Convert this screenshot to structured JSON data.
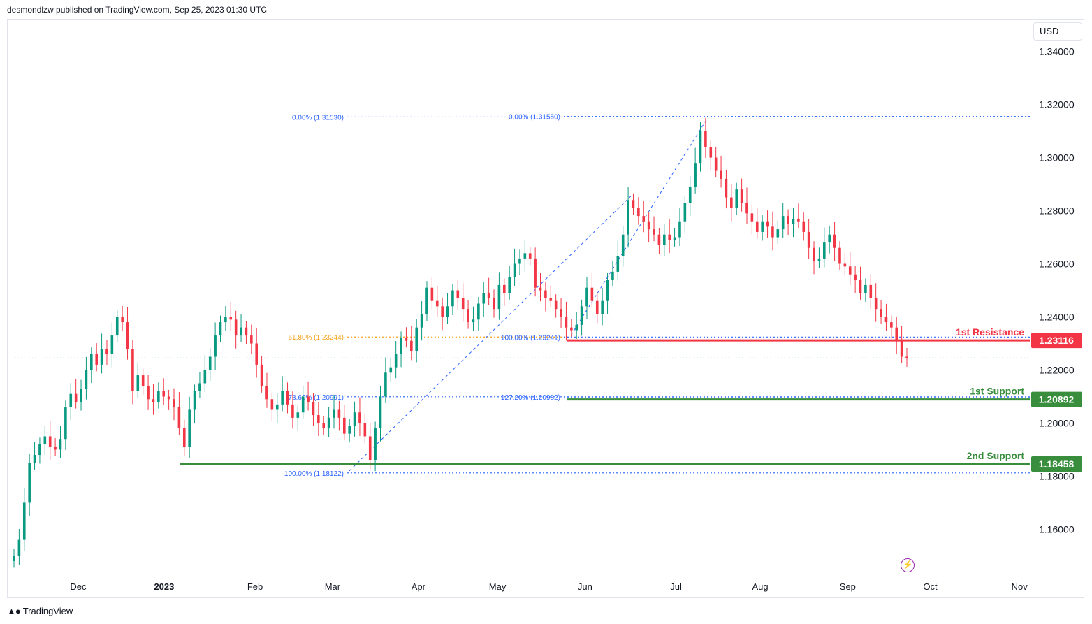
{
  "header": {
    "publisher": "desmondlzw published on TradingView.com, Sep 25, 2023 01:30 UTC"
  },
  "footer": {
    "brand": "TradingView",
    "logo": "tradingview-logo-icon"
  },
  "currency": "USD",
  "colors": {
    "up": "#089981",
    "down": "#f23645",
    "resistance": "#f23645",
    "support": "#388e3c",
    "fib_blue": "#2962ff",
    "fib_orange": "#f7a21b",
    "price_line": "#089981"
  },
  "chart_data": {
    "type": "candlestick",
    "x_labels": [
      {
        "text": "Dec",
        "pos": 3.9,
        "bold": false
      },
      {
        "text": "2023",
        "pos": 9.0,
        "bold": true
      },
      {
        "text": "Feb",
        "pos": 14.4,
        "bold": false
      },
      {
        "text": "Mar",
        "pos": 19.0,
        "bold": false
      },
      {
        "text": "Apr",
        "pos": 24.1,
        "bold": false
      },
      {
        "text": "May",
        "pos": 28.8,
        "bold": false
      },
      {
        "text": "Jun",
        "pos": 34.0,
        "bold": false
      },
      {
        "text": "Jul",
        "pos": 39.4,
        "bold": false
      },
      {
        "text": "Aug",
        "pos": 44.4,
        "bold": false
      },
      {
        "text": "Sep",
        "pos": 49.6,
        "bold": false
      },
      {
        "text": "Oct",
        "pos": 54.5,
        "bold": false
      },
      {
        "text": "Nov",
        "pos": 59.8,
        "bold": false
      }
    ],
    "y_ticks": [
      "1.34000",
      "1.32000",
      "1.30000",
      "1.28000",
      "1.26000",
      "1.24000",
      "1.22000",
      "1.20000",
      "1.18000",
      "1.16000"
    ],
    "y_tick_values": [
      1.34,
      1.32,
      1.3,
      1.28,
      1.26,
      1.24,
      1.22,
      1.2,
      1.18,
      1.16
    ],
    "ylim": [
      1.143,
      1.352
    ],
    "current_price": 1.2245,
    "series_close": [
      1.15,
      1.156,
      1.17,
      1.185,
      1.188,
      1.192,
      1.195,
      1.191,
      1.19,
      1.194,
      1.206,
      1.211,
      1.208,
      1.213,
      1.22,
      1.226,
      1.222,
      1.228,
      1.226,
      1.233,
      1.24,
      1.238,
      1.228,
      1.212,
      1.218,
      1.214,
      1.209,
      1.208,
      1.212,
      1.21,
      1.209,
      1.206,
      1.198,
      1.191,
      1.205,
      1.212,
      1.215,
      1.22,
      1.225,
      1.233,
      1.238,
      1.24,
      1.239,
      1.233,
      1.236,
      1.233,
      1.23,
      1.222,
      1.214,
      1.209,
      1.205,
      1.207,
      1.212,
      1.207,
      1.202,
      1.204,
      1.21,
      1.208,
      1.203,
      1.2,
      1.198,
      1.202,
      1.205,
      1.202,
      1.196,
      1.199,
      1.204,
      1.2,
      1.195,
      1.186,
      1.198,
      1.21,
      1.219,
      1.221,
      1.226,
      1.232,
      1.231,
      1.227,
      1.236,
      1.241,
      1.251,
      1.246,
      1.244,
      1.24,
      1.244,
      1.25,
      1.247,
      1.243,
      1.238,
      1.239,
      1.245,
      1.249,
      1.247,
      1.243,
      1.252,
      1.249,
      1.255,
      1.26,
      1.262,
      1.264,
      1.262,
      1.251,
      1.25,
      1.247,
      1.246,
      1.243,
      1.24,
      1.236,
      1.235,
      1.237,
      1.244,
      1.251,
      1.246,
      1.241,
      1.246,
      1.254,
      1.257,
      1.263,
      1.271,
      1.284,
      1.281,
      1.278,
      1.276,
      1.273,
      1.271,
      1.267,
      1.271,
      1.269,
      1.27,
      1.276,
      1.283,
      1.289,
      1.298,
      1.31,
      1.304,
      1.3,
      1.295,
      1.292,
      1.285,
      1.281,
      1.288,
      1.283,
      1.279,
      1.276,
      1.272,
      1.276,
      1.274,
      1.27,
      1.273,
      1.278,
      1.275,
      1.277,
      1.276,
      1.272,
      1.266,
      1.261,
      1.262,
      1.268,
      1.271,
      1.266,
      1.26,
      1.259,
      1.256,
      1.254,
      1.249,
      1.252,
      1.247,
      1.243,
      1.24,
      1.238,
      1.236,
      1.231,
      1.225,
      1.2245
    ],
    "fib_levels": [
      {
        "label": "0.00% (1.31530)",
        "value": 1.3153,
        "color": "blue",
        "group": "left"
      },
      {
        "label": "61.80% (1.23244)",
        "value": 1.23244,
        "color": "orange",
        "group": "left"
      },
      {
        "label": "78.60% (1.20991)",
        "value": 1.20991,
        "color": "blue",
        "group": "left"
      },
      {
        "label": "100.00% (1.18122)",
        "value": 1.18122,
        "color": "blue",
        "group": "left"
      },
      {
        "label": "0.00% (1.31550)",
        "value": 1.3155,
        "color": "blue",
        "group": "right"
      },
      {
        "label": "100.00% (1.23241)",
        "value": 1.23241,
        "color": "blue",
        "group": "right"
      },
      {
        "label": "127.20% (1.20982)",
        "value": 1.20982,
        "color": "blue",
        "group": "right"
      }
    ],
    "levels": [
      {
        "name": "1st Resistance",
        "value": 1.23116,
        "badge": "1.23116",
        "color": "resistance"
      },
      {
        "name": "1st Support",
        "value": 1.20892,
        "badge": "1.20892",
        "color": "support"
      },
      {
        "name": "2nd Support",
        "value": 1.18458,
        "badge": "1.18458",
        "color": "support"
      }
    ],
    "trend_lines": [
      {
        "from": [
          1.184,
          "Mar"
        ],
        "to": [
          1.2855,
          "Jun"
        ]
      },
      {
        "from": [
          1.233,
          "Jun"
        ],
        "to": [
          1.315,
          "Jul"
        ]
      }
    ]
  },
  "icons": {
    "flash": "flash-icon"
  }
}
